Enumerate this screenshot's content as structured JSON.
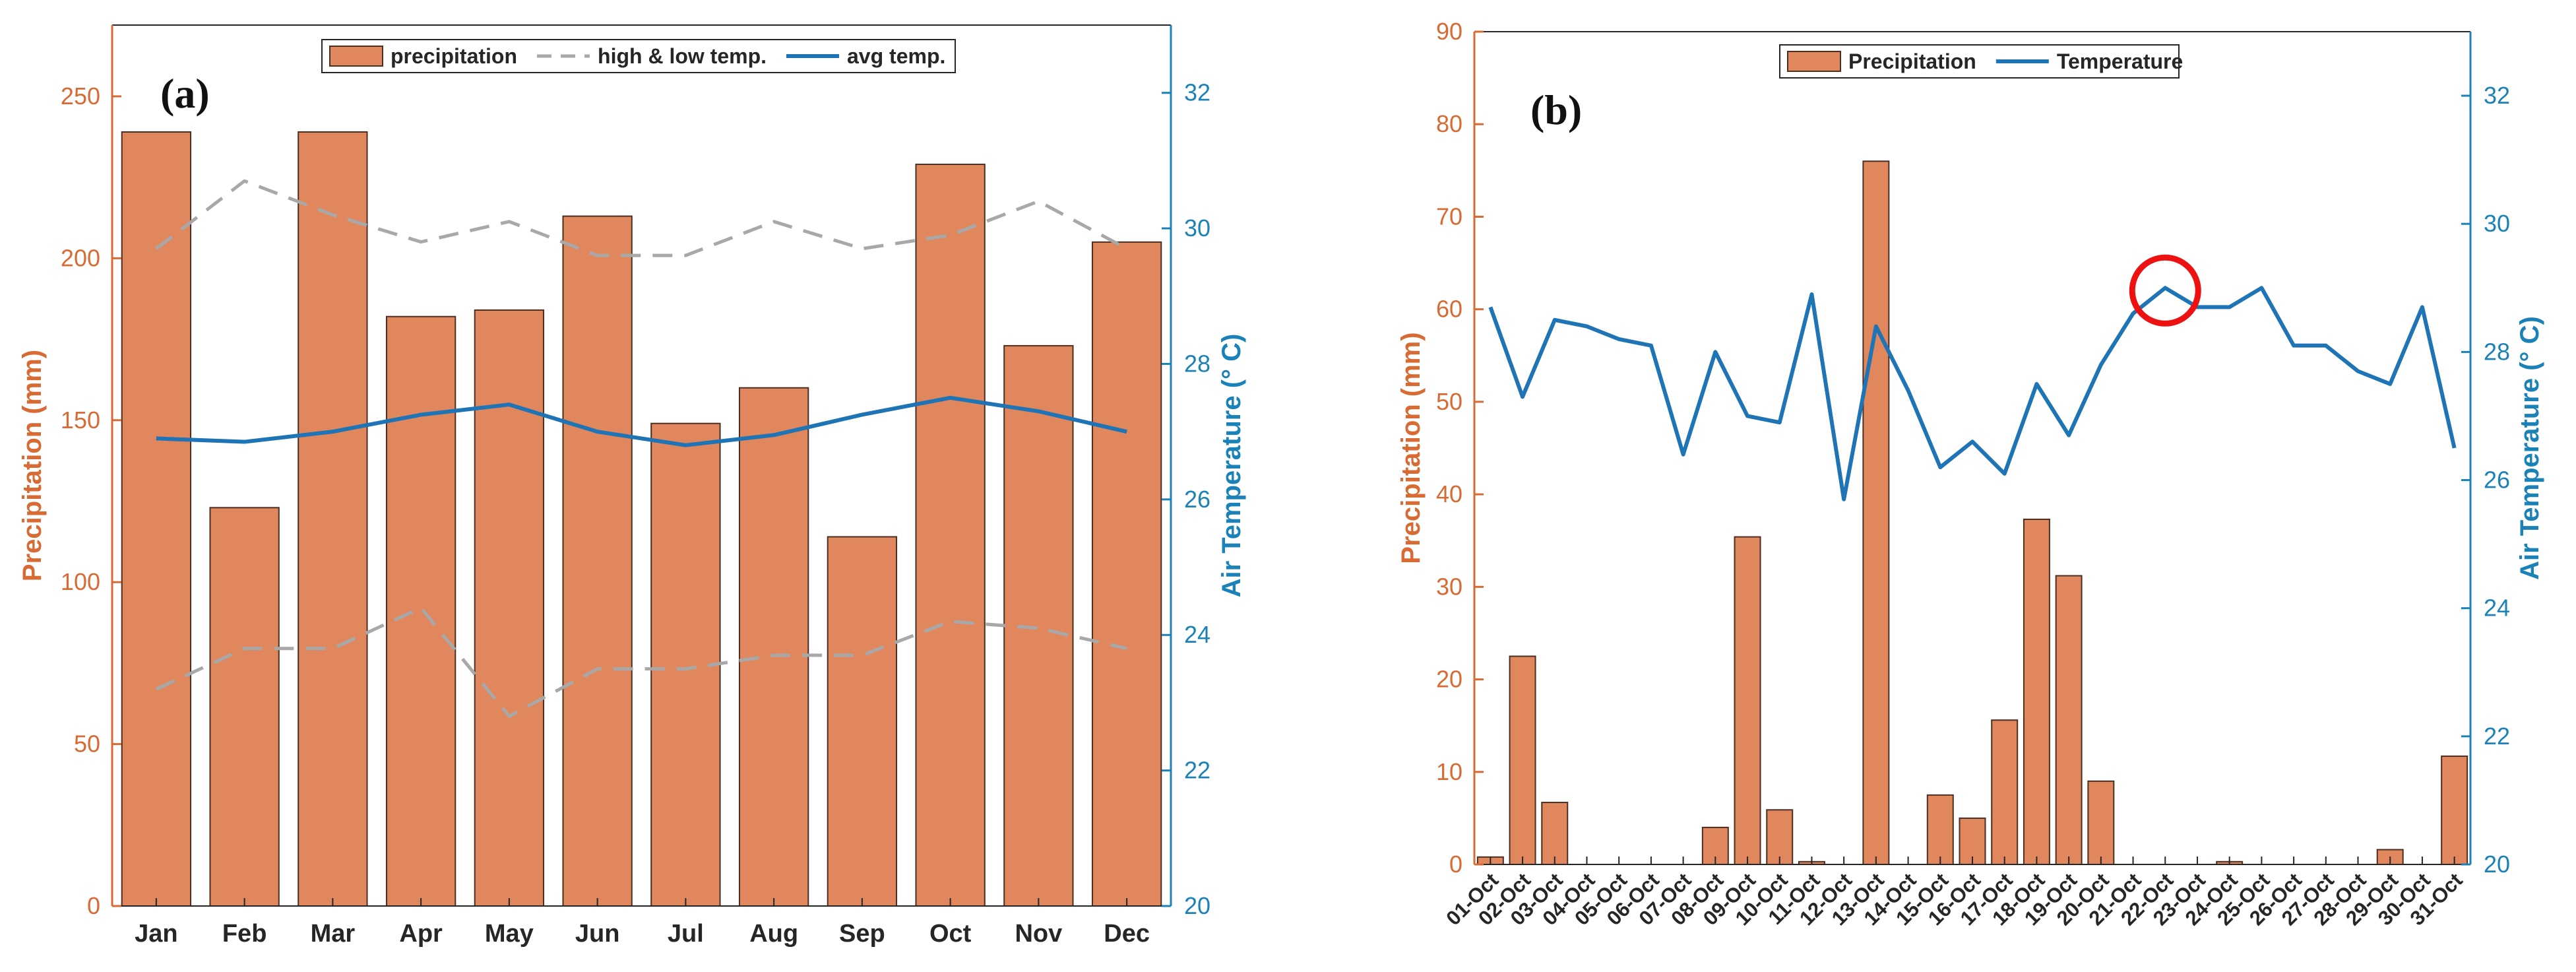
{
  "chart_data": [
    {
      "type": "bar+line",
      "panel_label": "(a)",
      "categories": [
        "Jan",
        "Feb",
        "Mar",
        "Apr",
        "May",
        "Jun",
        "Jul",
        "Aug",
        "Sep",
        "Oct",
        "Nov",
        "Dec"
      ],
      "series": [
        {
          "name": "precipitation",
          "type": "bar",
          "axis": "left",
          "values": [
            239,
            123,
            239,
            182,
            184,
            213,
            149,
            160,
            114,
            229,
            173,
            205
          ]
        },
        {
          "name": "high & low temp.",
          "type": "line-dashed",
          "axis": "right",
          "values": [
            29.7,
            30.7,
            30.2,
            29.8,
            30.1,
            29.6,
            29.6,
            30.1,
            29.7,
            29.9,
            30.4,
            29.7
          ]
        },
        {
          "name": "high & low temp. (low)",
          "type": "line-dashed",
          "axis": "right",
          "values": [
            23.2,
            23.8,
            23.8,
            24.4,
            22.8,
            23.5,
            23.5,
            23.7,
            23.7,
            24.2,
            24.1,
            23.8
          ]
        },
        {
          "name": "avg temp.",
          "type": "line",
          "axis": "right",
          "values": [
            26.9,
            26.85,
            27.0,
            27.25,
            27.4,
            27.0,
            26.8,
            26.95,
            27.25,
            27.5,
            27.3,
            27.0
          ]
        }
      ],
      "legend": [
        "precipitation",
        "high & low temp.",
        "avg temp."
      ],
      "ylabel_left": "Precipitation (mm)",
      "ylabel_right": "Air Temperature (° C)",
      "ylim_left": [
        0,
        272
      ],
      "ylim_right": [
        20,
        33
      ],
      "yticks_left": [
        0,
        50,
        100,
        150,
        200,
        250
      ],
      "yticks_right": [
        20,
        22,
        24,
        26,
        28,
        30,
        32
      ],
      "colors": {
        "bar": "#e0875e",
        "bar_edge": "#4a2f22",
        "line": "#1f74b5",
        "dashed": "#a8a8a8",
        "left_axis": "#d86b34",
        "right_axis": "#1b82b8"
      }
    },
    {
      "type": "bar+line",
      "panel_label": "(b)",
      "categories": [
        "01-Oct",
        "02-Oct",
        "03-Oct",
        "04-Oct",
        "05-Oct",
        "06-Oct",
        "07-Oct",
        "08-Oct",
        "09-Oct",
        "10-Oct",
        "11-Oct",
        "12-Oct",
        "13-Oct",
        "14-Oct",
        "15-Oct",
        "16-Oct",
        "17-Oct",
        "18-Oct",
        "19-Oct",
        "20-Oct",
        "21-Oct",
        "22-Oct",
        "23-Oct",
        "24-Oct",
        "25-Oct",
        "26-Oct",
        "27-Oct",
        "28-Oct",
        "29-Oct",
        "30-Oct",
        "31-Oct"
      ],
      "series": [
        {
          "name": "Precipitation",
          "type": "bar",
          "axis": "left",
          "values": [
            0.8,
            22.5,
            6.7,
            0,
            0,
            0,
            0,
            4,
            35.4,
            5.9,
            0.3,
            0,
            76,
            0,
            7.5,
            5,
            15.6,
            37.3,
            31.2,
            9,
            0,
            0,
            0,
            0.3,
            0,
            0,
            0,
            0,
            1.6,
            0,
            11.7
          ]
        },
        {
          "name": "Temperature",
          "type": "line",
          "axis": "right",
          "values": [
            28.7,
            27.3,
            28.5,
            28.4,
            28.2,
            28.1,
            26.4,
            28.0,
            27.0,
            26.9,
            28.9,
            25.7,
            28.4,
            27.4,
            26.2,
            26.6,
            26.1,
            27.5,
            26.7,
            27.8,
            28.6,
            29.0,
            28.7,
            28.7,
            29.0,
            28.1,
            28.1,
            27.7,
            27.5,
            28.7,
            26.5
          ]
        }
      ],
      "legend": [
        "Precipitation",
        "Temperature"
      ],
      "annotation": {
        "type": "circle",
        "category": "22-Oct",
        "value": 29.0
      },
      "ylabel_left": "Precipitation (mm)",
      "ylabel_right": "Air Temperature (° C)",
      "ylim_left": [
        0,
        90
      ],
      "ylim_right": [
        20,
        33
      ],
      "yticks_left": [
        0,
        10,
        20,
        30,
        40,
        50,
        60,
        70,
        80,
        90
      ],
      "yticks_right": [
        20,
        22,
        24,
        26,
        28,
        30,
        32
      ],
      "colors": {
        "bar": "#e0875e",
        "bar_edge": "#4a2f22",
        "line": "#1f74b5",
        "annotation": "#ee1111",
        "left_axis": "#d86b34",
        "right_axis": "#1b82b8"
      }
    }
  ]
}
